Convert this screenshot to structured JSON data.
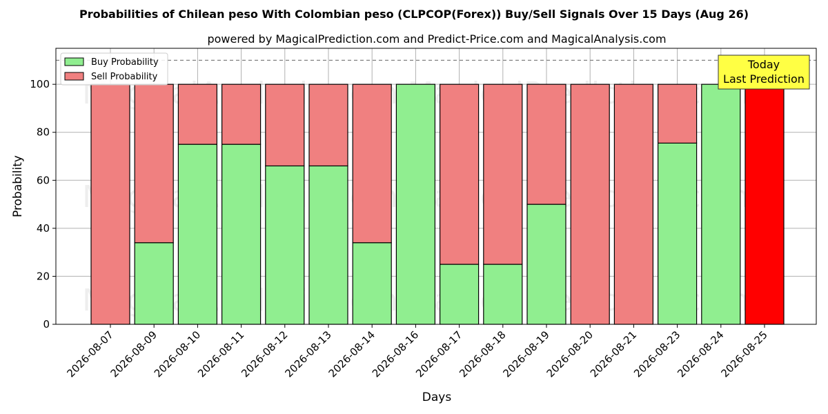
{
  "chart_data": {
    "type": "bar",
    "stacked": true,
    "title": "Probabilities of Chilean peso With Colombian peso (CLPCOP(Forex)) Buy/Sell Signals Over 15 Days (Aug 26)",
    "subtitle": "powered by MagicalPrediction.com and Predict-Price.com and MagicalAnalysis.com",
    "xlabel": "Days",
    "ylabel": "Probability",
    "ylim": [
      0,
      115
    ],
    "yticks": [
      0,
      20,
      40,
      60,
      80,
      100
    ],
    "reference_line": 110,
    "grid": true,
    "legend_placement": "top-left",
    "categories": [
      "2026-08-07",
      "2026-08-09",
      "2026-08-10",
      "2026-08-11",
      "2026-08-12",
      "2026-08-13",
      "2026-08-14",
      "2026-08-16",
      "2026-08-17",
      "2026-08-18",
      "2026-08-19",
      "2026-08-20",
      "2026-08-21",
      "2026-08-23",
      "2026-08-24",
      "2026-08-25"
    ],
    "series": [
      {
        "name": "Buy Probability",
        "color": "#90ee90",
        "values": [
          0,
          34,
          75,
          75,
          66,
          66,
          34,
          100,
          25,
          25,
          50,
          0,
          0,
          75.5,
          100,
          0
        ]
      },
      {
        "name": "Sell Probability",
        "color": "#f08080",
        "values": [
          100,
          66,
          25,
          25,
          34,
          34,
          66,
          0,
          75,
          75,
          50,
          100,
          100,
          24.5,
          0,
          100
        ]
      }
    ],
    "highlight": {
      "index": 15,
      "color": "#ff0000",
      "label_line1": "Today",
      "label_line2": "Last Prediction",
      "label_bg": "#ffff44"
    },
    "watermarks": [
      "MagicalAnalysis.com",
      "MagicalPrediction.com"
    ]
  }
}
